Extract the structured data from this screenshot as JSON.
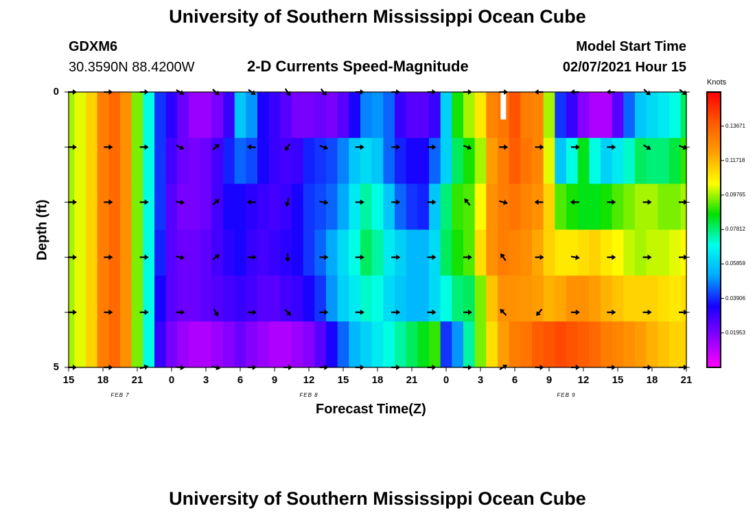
{
  "header": {
    "title": "University of Southern Mississippi Ocean Cube",
    "station": "GDXM6",
    "location": "30.3590N 88.4200W",
    "plot_title": "2-D Currents Speed-Magnitude",
    "model_start_label": "Model Start Time",
    "model_start_value": "02/07/2021 Hour 15"
  },
  "footer": {
    "title": "University of Southern Mississippi Ocean Cube"
  },
  "colors": {
    "colormap": [
      "#ff00ff",
      "#8a00ff",
      "#1800ff",
      "#00aaff",
      "#00ffee",
      "#00e000",
      "#ffff00",
      "#ffa000",
      "#ff5a00",
      "#ff0000"
    ],
    "arrow": "#000000",
    "axes": "#000000",
    "gap": "#ffffff"
  },
  "chart_data": {
    "type": "heatmap",
    "title": "2-D Currents Speed-Magnitude",
    "xlabel": "Forecast Time(Z)",
    "ylabel": "Depth (ft)",
    "x_start_label": "15",
    "x_step_hours": 1,
    "x_count": 55,
    "x_ticks": [
      {
        "pos": 0,
        "label": "15"
      },
      {
        "pos": 3,
        "label": "18"
      },
      {
        "pos": 6,
        "label": "21"
      },
      {
        "pos": 9,
        "label": "0"
      },
      {
        "pos": 12,
        "label": "3"
      },
      {
        "pos": 15,
        "label": "6"
      },
      {
        "pos": 18,
        "label": "9"
      },
      {
        "pos": 21,
        "label": "12"
      },
      {
        "pos": 24,
        "label": "15"
      },
      {
        "pos": 27,
        "label": "18"
      },
      {
        "pos": 30,
        "label": "21"
      },
      {
        "pos": 33,
        "label": "0"
      },
      {
        "pos": 36,
        "label": "3"
      },
      {
        "pos": 39,
        "label": "6"
      },
      {
        "pos": 42,
        "label": "9"
      },
      {
        "pos": 45,
        "label": "12"
      },
      {
        "pos": 48,
        "label": "15"
      },
      {
        "pos": 51,
        "label": "18"
      },
      {
        "pos": 54,
        "label": "21"
      }
    ],
    "date_labels": [
      {
        "pos": 4.5,
        "label": "FEB 7"
      },
      {
        "pos": 21,
        "label": "FEB 8"
      },
      {
        "pos": 43.5,
        "label": "FEB 9"
      }
    ],
    "y_range": [
      0,
      5
    ],
    "y_ticks": [
      {
        "value": 0,
        "label": "0"
      },
      {
        "value": 5,
        "label": "5"
      }
    ],
    "depth_layers": 5,
    "colorbar": {
      "unit": "Knots",
      "range": [
        0,
        0.156
      ],
      "ticks": [
        {
          "value": 0.01953,
          "label": "0.01953"
        },
        {
          "value": 0.03906,
          "label": "0.03906"
        },
        {
          "value": 0.05859,
          "label": "0.05859"
        },
        {
          "value": 0.07812,
          "label": "0.07812"
        },
        {
          "value": 0.09765,
          "label": "0.09765"
        },
        {
          "value": 0.11718,
          "label": "0.11718"
        },
        {
          "value": 0.13671,
          "label": "0.13671"
        }
      ]
    },
    "speed_knots": [
      [
        0.098,
        0.102,
        0.112,
        0.13,
        0.135,
        0.125,
        0.095,
        0.07,
        0.04,
        0.032,
        0.022,
        0.015,
        0.015,
        0.02,
        0.03,
        0.058,
        0.05,
        0.034,
        0.03,
        0.025,
        0.02,
        0.02,
        0.022,
        0.02,
        0.025,
        0.035,
        0.048,
        0.05,
        0.045,
        0.03,
        0.025,
        0.025,
        0.03,
        0.06,
        0.088,
        0.098,
        0.108,
        0.128,
        0.132,
        0.14,
        0.13,
        0.128,
        0.098,
        0.04,
        0.03,
        0.018,
        0.012,
        0.012,
        0.025,
        0.045,
        0.058,
        0.062,
        0.065,
        0.07,
        0.08
      ],
      [
        0.098,
        0.102,
        0.112,
        0.13,
        0.135,
        0.125,
        0.095,
        0.07,
        0.04,
        0.028,
        0.022,
        0.02,
        0.022,
        0.028,
        0.038,
        0.045,
        0.042,
        0.035,
        0.03,
        0.028,
        0.03,
        0.038,
        0.04,
        0.042,
        0.048,
        0.058,
        0.062,
        0.058,
        0.045,
        0.038,
        0.035,
        0.035,
        0.045,
        0.06,
        0.08,
        0.088,
        0.098,
        0.122,
        0.13,
        0.138,
        0.132,
        0.128,
        0.102,
        0.058,
        0.07,
        0.085,
        0.07,
        0.06,
        0.065,
        0.072,
        0.08,
        0.078,
        0.078,
        0.082,
        0.09
      ],
      [
        0.098,
        0.102,
        0.112,
        0.13,
        0.135,
        0.125,
        0.095,
        0.07,
        0.04,
        0.025,
        0.02,
        0.02,
        0.022,
        0.028,
        0.035,
        0.035,
        0.032,
        0.03,
        0.028,
        0.03,
        0.035,
        0.04,
        0.042,
        0.045,
        0.052,
        0.065,
        0.075,
        0.07,
        0.058,
        0.045,
        0.04,
        0.038,
        0.058,
        0.078,
        0.09,
        0.092,
        0.105,
        0.125,
        0.13,
        0.132,
        0.128,
        0.125,
        0.112,
        0.092,
        0.088,
        0.085,
        0.085,
        0.088,
        0.092,
        0.095,
        0.098,
        0.098,
        0.095,
        0.095,
        0.098
      ],
      [
        0.098,
        0.102,
        0.112,
        0.13,
        0.135,
        0.125,
        0.095,
        0.07,
        0.038,
        0.025,
        0.022,
        0.022,
        0.024,
        0.028,
        0.032,
        0.035,
        0.03,
        0.028,
        0.03,
        0.032,
        0.035,
        0.04,
        0.045,
        0.052,
        0.062,
        0.07,
        0.08,
        0.075,
        0.065,
        0.06,
        0.055,
        0.055,
        0.062,
        0.08,
        0.088,
        0.092,
        0.11,
        0.125,
        0.13,
        0.128,
        0.126,
        0.12,
        0.112,
        0.108,
        0.108,
        0.11,
        0.112,
        0.108,
        0.105,
        0.1,
        0.098,
        0.1,
        0.1,
        0.102,
        0.105
      ],
      [
        0.098,
        0.102,
        0.112,
        0.13,
        0.135,
        0.125,
        0.095,
        0.07,
        0.035,
        0.025,
        0.022,
        0.022,
        0.024,
        0.026,
        0.028,
        0.03,
        0.028,
        0.025,
        0.025,
        0.028,
        0.03,
        0.035,
        0.04,
        0.05,
        0.06,
        0.065,
        0.072,
        0.07,
        0.062,
        0.058,
        0.055,
        0.055,
        0.062,
        0.07,
        0.078,
        0.08,
        0.095,
        0.115,
        0.125,
        0.125,
        0.124,
        0.122,
        0.118,
        0.12,
        0.125,
        0.125,
        0.122,
        0.118,
        0.115,
        0.112,
        0.112,
        0.112,
        0.11,
        0.108,
        0.11
      ],
      [
        0.098,
        0.102,
        0.112,
        0.13,
        0.135,
        0.125,
        0.095,
        0.07,
        0.03,
        0.02,
        0.015,
        0.012,
        0.012,
        0.015,
        0.018,
        0.022,
        0.018,
        0.015,
        0.012,
        0.012,
        0.015,
        0.018,
        0.025,
        0.035,
        0.045,
        0.055,
        0.06,
        0.065,
        0.07,
        0.075,
        0.08,
        0.085,
        0.09,
        0.04,
        0.05,
        0.075,
        0.095,
        0.11,
        0.122,
        0.13,
        0.132,
        0.138,
        0.14,
        0.142,
        0.14,
        0.138,
        0.135,
        0.13,
        0.128,
        0.125,
        0.122,
        0.118,
        0.115,
        0.112,
        0.112
      ]
    ],
    "arrow_columns": [
      {
        "label": "15 FEB 7"
      },
      {
        "label": "18 FEB 7"
      },
      {
        "label": "21 FEB 7"
      },
      {
        "label": "0 FEB 8"
      },
      {
        "label": "3 FEB 8"
      },
      {
        "label": "6 FEB 8"
      },
      {
        "label": "9 FEB 8"
      },
      {
        "label": "12 FEB 8"
      },
      {
        "label": "15 FEB 8"
      },
      {
        "label": "18 FEB 8"
      },
      {
        "label": "21 FEB 8"
      },
      {
        "label": "0 FEB 9"
      },
      {
        "label": "3 FEB 9"
      },
      {
        "label": "6 FEB 9"
      },
      {
        "label": "9 FEB 9"
      },
      {
        "label": "12 FEB 9"
      },
      {
        "label": "15 FEB 9"
      },
      {
        "label": "18 FEB 9"
      }
    ],
    "arrow_direction_deg": [
      [
        0,
        0,
        0,
        30,
        40,
        35,
        55,
        50,
        0,
        0,
        0,
        0,
        0,
        180,
        180,
        180,
        40,
        35
      ],
      [
        0,
        0,
        0,
        25,
        -40,
        185,
        125,
        20,
        0,
        0,
        0,
        20,
        0,
        0,
        0,
        0,
        30,
        20
      ],
      [
        0,
        0,
        0,
        10,
        -40,
        180,
        105,
        10,
        0,
        0,
        0,
        230,
        15,
        180,
        180,
        0,
        0,
        0
      ],
      [
        0,
        0,
        0,
        10,
        -35,
        0,
        90,
        0,
        0,
        0,
        0,
        0,
        235,
        0,
        10,
        0,
        0,
        0
      ],
      [
        0,
        0,
        0,
        0,
        60,
        0,
        45,
        0,
        0,
        0,
        0,
        0,
        225,
        130,
        0,
        0,
        0,
        0
      ],
      [
        0,
        0,
        -15,
        5,
        15,
        0,
        0,
        0,
        0,
        0,
        0,
        0,
        -30,
        0,
        0,
        0,
        0,
        0
      ]
    ],
    "missing_cell": {
      "time_index": 38,
      "depth_layer": 0
    }
  }
}
